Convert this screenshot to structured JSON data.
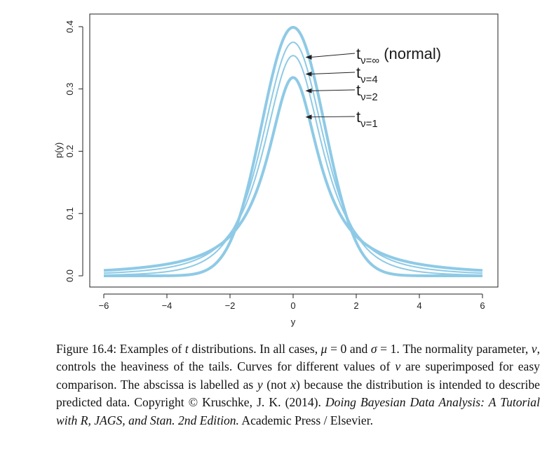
{
  "chart_data": {
    "type": "line",
    "xlabel": "y",
    "ylabel": "p(y)",
    "xlim": [
      -6,
      6
    ],
    "ylim": [
      0,
      0.4
    ],
    "x_ticks": [
      "−6",
      "−4",
      "−2",
      "0",
      "2",
      "4",
      "6"
    ],
    "y_ticks": [
      "0.0",
      "0.1",
      "0.2",
      "0.3",
      "0.4"
    ],
    "grid": false,
    "series_color": "#8ecae6",
    "series": [
      {
        "nu": "inf",
        "peak": 0.399
      },
      {
        "nu": 4,
        "peak": 0.375
      },
      {
        "nu": 2,
        "peak": 0.354
      },
      {
        "nu": 1,
        "peak": 0.318
      }
    ],
    "annotations": [
      {
        "base": "t",
        "sub": "ν=∞",
        "suffix": " (normal)",
        "x": 0.3,
        "y": 0.351
      },
      {
        "base": "t",
        "sub": "ν=4",
        "suffix": "",
        "x": 0.3,
        "y": 0.324
      },
      {
        "base": "t",
        "sub": "ν=2",
        "suffix": "",
        "x": 0.3,
        "y": 0.297
      },
      {
        "base": "t",
        "sub": "ν=1",
        "suffix": "",
        "x": 0.3,
        "y": 0.255
      }
    ]
  },
  "caption": {
    "lead": "Figure 16.4: Examples of ",
    "t": "t",
    "p1": " distributions. In all cases, ",
    "mu": "μ",
    "p2": " = 0 and ",
    "sigma": "σ",
    "p3": " = 1. The normality parameter, ",
    "nu1": "ν",
    "p4": ", controls the heaviness of the tails. Curves for different values of ",
    "nu2": "ν",
    "p5": " are superimposed for easy comparison. The abscissa is labelled as ",
    "y": "y",
    "p6": " (not ",
    "x": "x",
    "p7": ") because the distribution is intended to describe predicted data. Copyright © Kruschke, J. K. (2014). ",
    "book": "Doing Bayesian Data Analysis: A Tutorial with R, JAGS, and Stan. 2nd Edition.",
    "p8": " Academic Press / Elsevier."
  }
}
